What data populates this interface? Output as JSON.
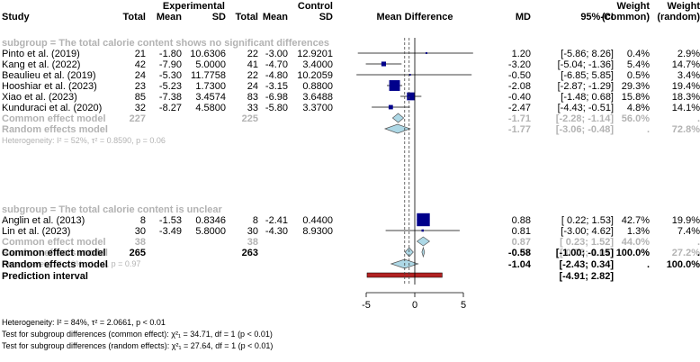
{
  "chart_data": {
    "type": "forest",
    "header": {
      "group_experimental": "Experimental",
      "group_control": "Control",
      "study": "Study",
      "total": "Total",
      "mean": "Mean",
      "sd": "SD",
      "plot": "Mean Difference",
      "md": "MD",
      "ci": "95%-CI",
      "weight": "Weight",
      "common": "(common)",
      "random": "(random)"
    },
    "xlim": [
      -6,
      6
    ],
    "ticks": [
      -5,
      0,
      5
    ],
    "tick_labels": [
      "-5",
      "0",
      "5"
    ],
    "colors": {
      "square": "#00008b",
      "diamond": "#add8e6",
      "prediction": "#b22222",
      "grey": "#b3b3b3"
    },
    "subgroups": [
      {
        "label": "subgroup = The total calorie content shows no significant differences",
        "studies": [
          {
            "name": "Pinto et al. (2019)",
            "e_total": "21",
            "e_mean": "-1.80",
            "e_sd": "10.6306",
            "c_total": "22",
            "c_mean": "-3.00",
            "c_sd": "12.9201",
            "md_text": "1.20",
            "ci_text": "[-5.86; 8.26]",
            "w_common": "0.4%",
            "w_random": "2.9%",
            "md": 1.2,
            "lo": -5.86,
            "hi": 8.26,
            "w": 0.4
          },
          {
            "name": "Kang et al. (2022)",
            "e_total": "42",
            "e_mean": "-7.90",
            "e_sd": "5.0000",
            "c_total": "41",
            "c_mean": "-4.70",
            "c_sd": "3.4000",
            "md_text": "-3.20",
            "ci_text": "[-5.04; -1.36]",
            "w_common": "5.4%",
            "w_random": "14.7%",
            "md": -3.2,
            "lo": -5.04,
            "hi": -1.36,
            "w": 5.4
          },
          {
            "name": "Beaulieu et al. (2019)",
            "e_total": "24",
            "e_mean": "-5.30",
            "e_sd": "11.7758",
            "c_total": "22",
            "c_mean": "-4.80",
            "c_sd": "10.2059",
            "md_text": "-0.50",
            "ci_text": "[-6.85; 5.85]",
            "w_common": "0.5%",
            "w_random": "3.4%",
            "md": -0.5,
            "lo": -6.85,
            "hi": 5.85,
            "w": 0.5
          },
          {
            "name": "Hooshiar et al. (2023)",
            "e_total": "23",
            "e_mean": "-5.23",
            "e_sd": "1.7300",
            "c_total": "24",
            "c_mean": "-3.15",
            "c_sd": "0.8800",
            "md_text": "-2.08",
            "ci_text": "[-2.87; -1.29]",
            "w_common": "29.3%",
            "w_random": "19.4%",
            "md": -2.08,
            "lo": -2.87,
            "hi": -1.29,
            "w": 29.3
          },
          {
            "name": "Xiao et al. (2023)",
            "e_total": "85",
            "e_mean": "-7.38",
            "e_sd": "3.4574",
            "c_total": "83",
            "c_mean": "-6.98",
            "c_sd": "3.6488",
            "md_text": "-0.40",
            "ci_text": "[-1.48; 0.68]",
            "w_common": "15.8%",
            "w_random": "18.3%",
            "md": -0.4,
            "lo": -1.48,
            "hi": 0.68,
            "w": 15.8
          },
          {
            "name": "Kunduraci et al. (2020)",
            "e_total": "32",
            "e_mean": "-8.27",
            "e_sd": "4.5800",
            "c_total": "33",
            "c_mean": "-5.80",
            "c_sd": "3.3700",
            "md_text": "-2.47",
            "ci_text": "[-4.43; -0.51]",
            "w_common": "4.8%",
            "w_random": "14.1%",
            "md": -2.47,
            "lo": -4.43,
            "hi": -0.51,
            "w": 4.8
          }
        ],
        "common": {
          "label": "Common effect model",
          "e_total": "227",
          "c_total": "225",
          "md_text": "-1.71",
          "ci_text": "[-2.28; -1.14]",
          "w_common": "56.0%",
          "w_random": ".",
          "md": -1.71,
          "lo": -2.28,
          "hi": -1.14
        },
        "random": {
          "label": "Random effects model",
          "md_text": "-1.77",
          "ci_text": "[-3.06; -0.48]",
          "w_common": ".",
          "w_random": "72.8%",
          "md": -1.77,
          "lo": -3.06,
          "hi": -0.48
        },
        "heterogeneity": "Heterogeneity: I² = 52%, τ² = 0.8590, p = 0.06"
      },
      {
        "label": "subgroup = The total calorie content is unclear",
        "studies": [
          {
            "name": "Anglin et al. (2013)",
            "e_total": "8",
            "e_mean": "-1.53",
            "e_sd": "0.8346",
            "c_total": "8",
            "c_mean": "-2.41",
            "c_sd": "0.4400",
            "md_text": "0.88",
            "ci_text": "[ 0.22; 1.53]",
            "w_common": "42.7%",
            "w_random": "19.9%",
            "md": 0.88,
            "lo": 0.22,
            "hi": 1.53,
            "w": 42.7
          },
          {
            "name": "Lin et al. (2023)",
            "e_total": "30",
            "e_mean": "-3.49",
            "e_sd": "5.8000",
            "c_total": "30",
            "c_mean": "-4.30",
            "c_sd": "8.9300",
            "md_text": "0.81",
            "ci_text": "[-3.00; 4.62]",
            "w_common": "1.3%",
            "w_random": "7.4%",
            "md": 0.81,
            "lo": -3.0,
            "hi": 4.62,
            "w": 1.3
          }
        ],
        "common": {
          "label": "Common effect model",
          "e_total": "38",
          "c_total": "38",
          "md_text": "0.87",
          "ci_text": "[ 0.23; 1.52]",
          "w_common": "44.0%",
          "w_random": ".",
          "md": 0.87,
          "lo": 0.23,
          "hi": 1.52
        },
        "random": {
          "label": "Random effects model",
          "md_text": "0.87",
          "ci_text": "[ 0.73; 1.01]",
          "w_common": ".",
          "w_random": "27.2%",
          "md": 0.87,
          "lo": 0.73,
          "hi": 1.01
        },
        "heterogeneity": "Heterogeneity: I² = 0%, τ² = 0, p = 0.97"
      }
    ],
    "overall": {
      "common": {
        "label": "Common effect model",
        "e_total": "265",
        "c_total": "263",
        "md_text": "-0.58",
        "ci_text": "[-1.00; -0.15]",
        "w_common": "100.0%",
        "w_random": ".",
        "md": -0.58,
        "lo": -1.0,
        "hi": -0.15
      },
      "random": {
        "label": "Random effects model",
        "md_text": "-1.04",
        "ci_text": "[-2.43; 0.34]",
        "w_common": ".",
        "w_random": "100.0%",
        "md": -1.04,
        "lo": -2.43,
        "hi": 0.34
      },
      "prediction": {
        "label": "Prediction interval",
        "ci_text": "[-4.91; 2.82]",
        "lo": -4.91,
        "hi": 2.82
      }
    },
    "footer": [
      "Heterogeneity: I² = 84%, τ² = 2.0661, p < 0.01",
      "Test for subgroup differences (common effect): χ²₁ = 34.71, df = 1 (p < 0.01)",
      "Test for subgroup differences (random effects): χ²₁ = 27.64, df = 1 (p < 0.01)"
    ]
  }
}
